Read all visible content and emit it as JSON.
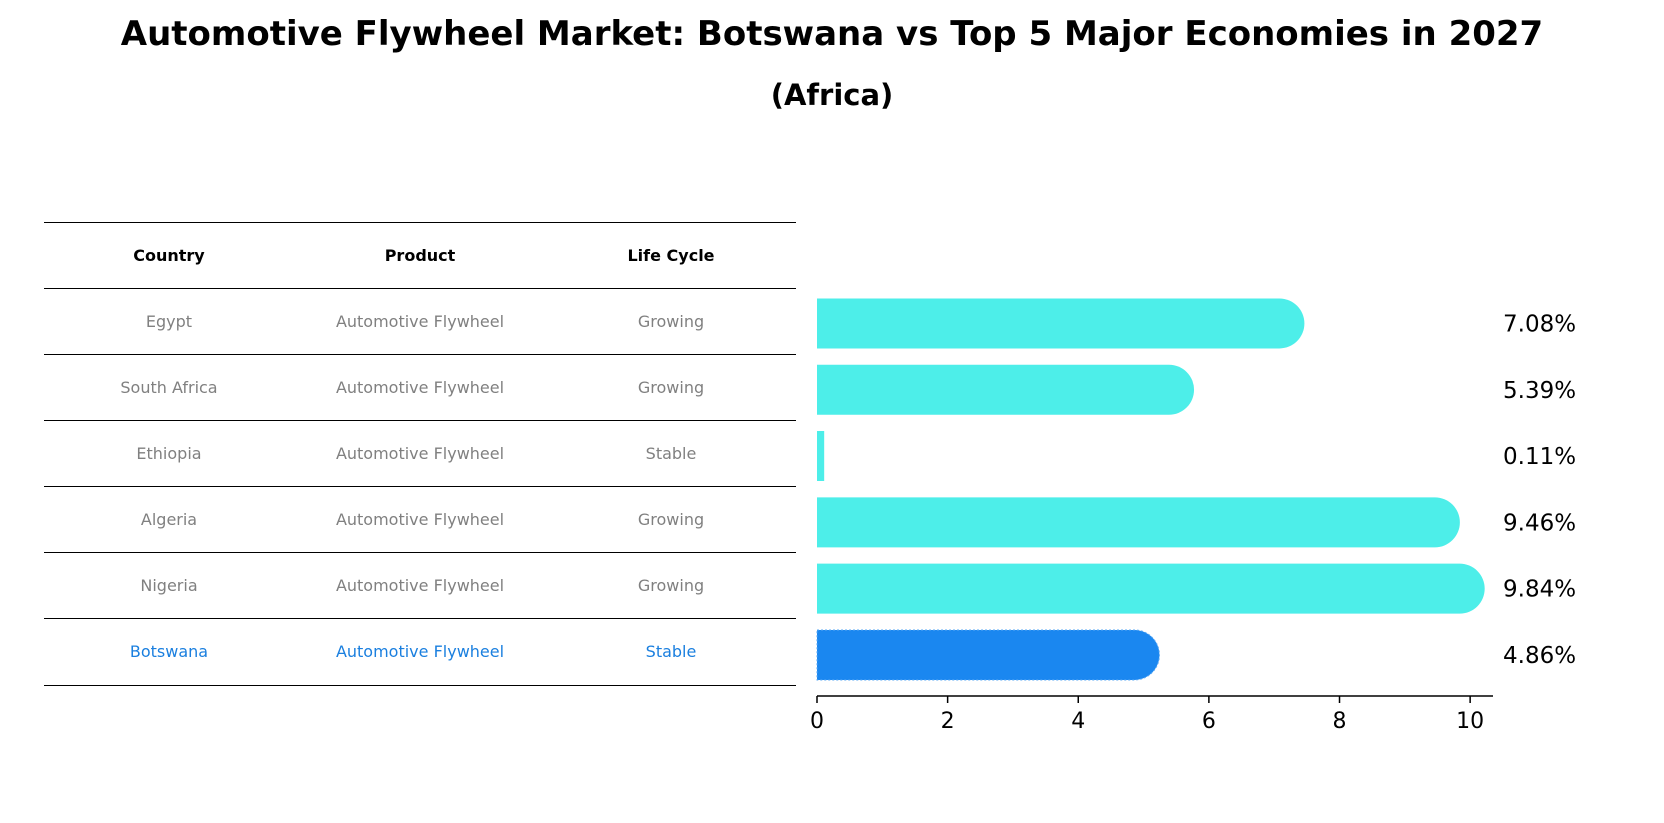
{
  "title": "Automotive Flywheel Market: Botswana vs Top 5 Major Economies in 2027",
  "subtitle": "(Africa)",
  "table": {
    "headers": [
      "Country",
      "Product",
      "Life Cycle"
    ],
    "rows": [
      [
        "Egypt",
        "Automotive Flywheel",
        "Growing"
      ],
      [
        "South Africa",
        "Automotive Flywheel",
        "Growing"
      ],
      [
        "Ethiopia",
        "Automotive Flywheel",
        "Stable"
      ],
      [
        "Algeria",
        "Automotive Flywheel",
        "Growing"
      ],
      [
        "Nigeria",
        "Automotive Flywheel",
        "Growing"
      ],
      [
        "Botswana",
        "Automotive Flywheel",
        "Stable"
      ]
    ],
    "highlight_row": 5
  },
  "colors": {
    "bar": "#4deee9",
    "highlight": "#1a87f0",
    "highlight_text": "#1a7fdf"
  },
  "chart_data": {
    "type": "bar",
    "orientation": "horizontal",
    "categories": [
      "Egypt",
      "South Africa",
      "Ethiopia",
      "Algeria",
      "Nigeria",
      "Botswana"
    ],
    "values": [
      7.08,
      5.39,
      0.11,
      9.46,
      9.84,
      4.86
    ],
    "labels": [
      "7.08%",
      "5.39%",
      "0.11%",
      "9.46%",
      "9.84%",
      "4.86%"
    ],
    "xlim": [
      0,
      10.35
    ],
    "xticks": [
      "0",
      "2",
      "4",
      "6",
      "8",
      "10"
    ],
    "highlight": "Botswana",
    "grid": false
  }
}
